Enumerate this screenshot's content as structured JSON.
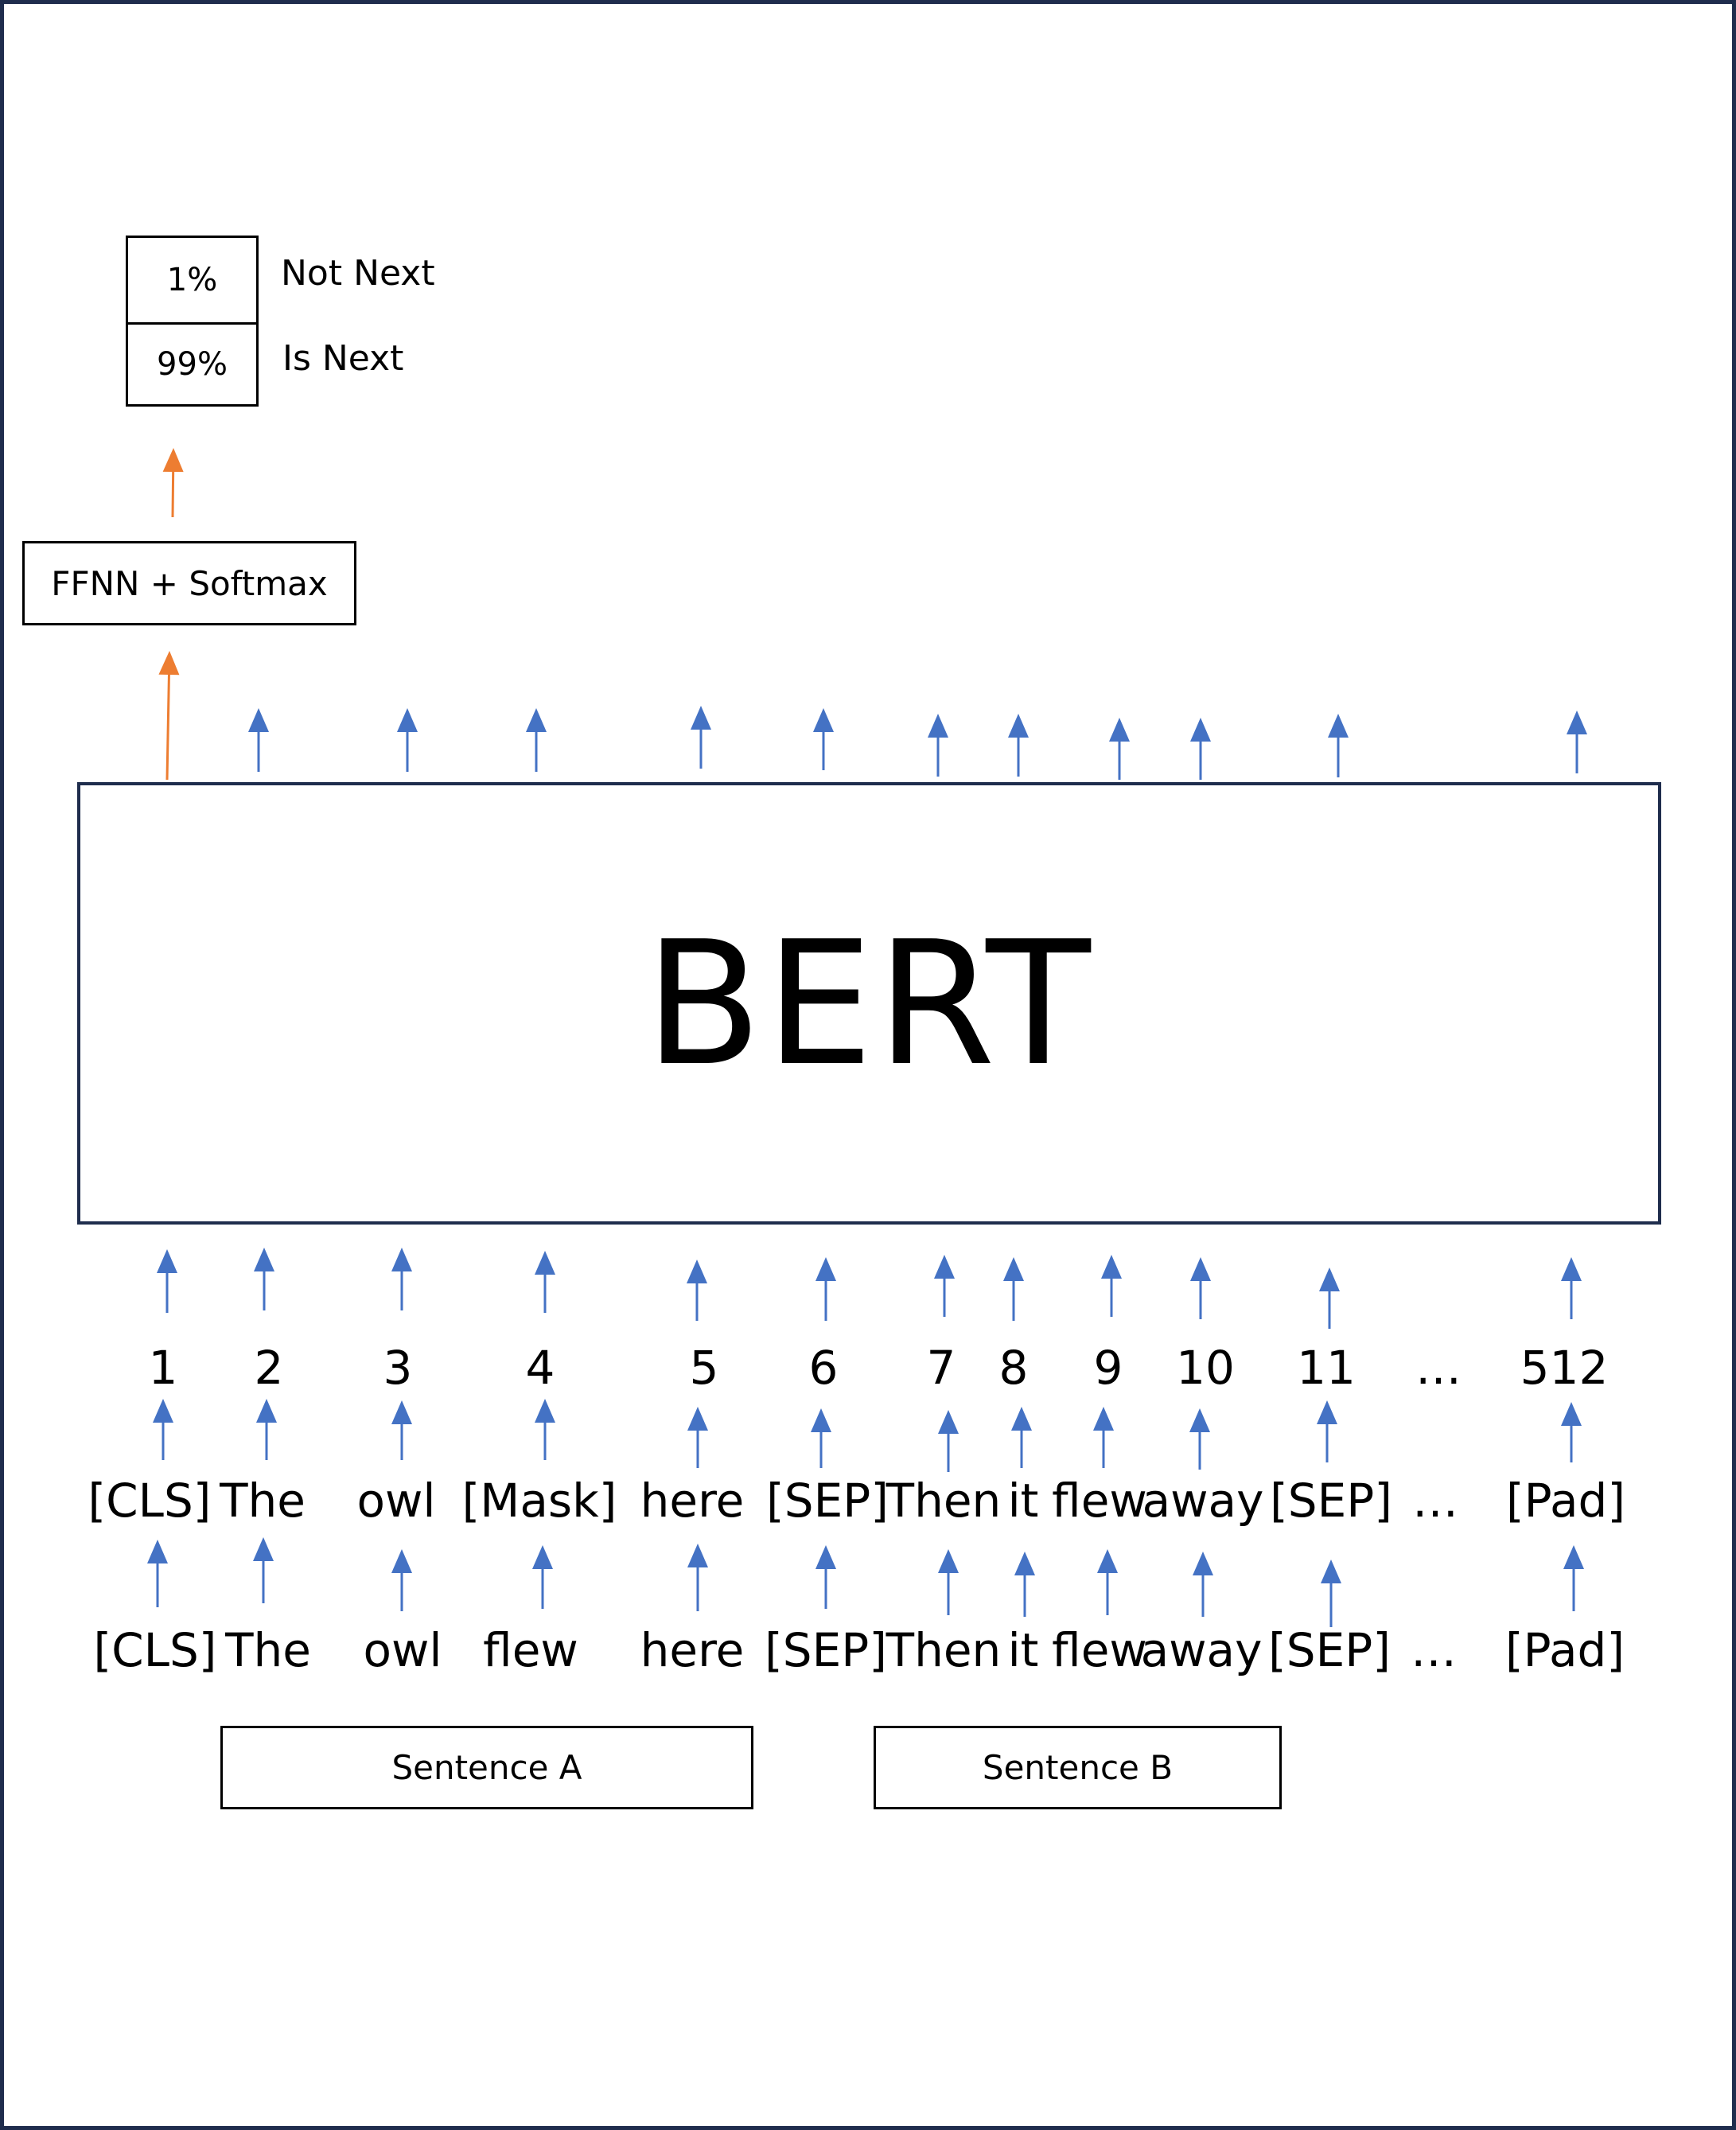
{
  "output": {
    "probabilities": [
      {
        "value": "1%",
        "label": "Not Next"
      },
      {
        "value": "99%",
        "label": "Is Next"
      }
    ],
    "classifier_label": "FFNN + Softmax"
  },
  "model": {
    "name": "BERT"
  },
  "positions": [
    "1",
    "2",
    "3",
    "4",
    "5",
    "6",
    "7",
    "8",
    "9",
    "10",
    "11",
    "…",
    "512"
  ],
  "masked_tokens": [
    "[CLS]",
    "The",
    "owl",
    "[Mask]",
    "here",
    "[SEP]",
    "Then",
    "it",
    "flew",
    "away",
    "[SEP]",
    "…",
    "[Pad]"
  ],
  "input_tokens": [
    "[CLS]",
    "The",
    "owl",
    "flew",
    "here",
    "[SEP]",
    "Then",
    "it",
    "flew",
    "away",
    "[SEP]",
    "…",
    "[Pad]"
  ],
  "segments": {
    "a": "Sentence A",
    "b": "Sentence B"
  },
  "colors": {
    "frame": "#1f2d4d",
    "arrow_blue": "#4472c4",
    "arrow_orange": "#ed7d31"
  }
}
